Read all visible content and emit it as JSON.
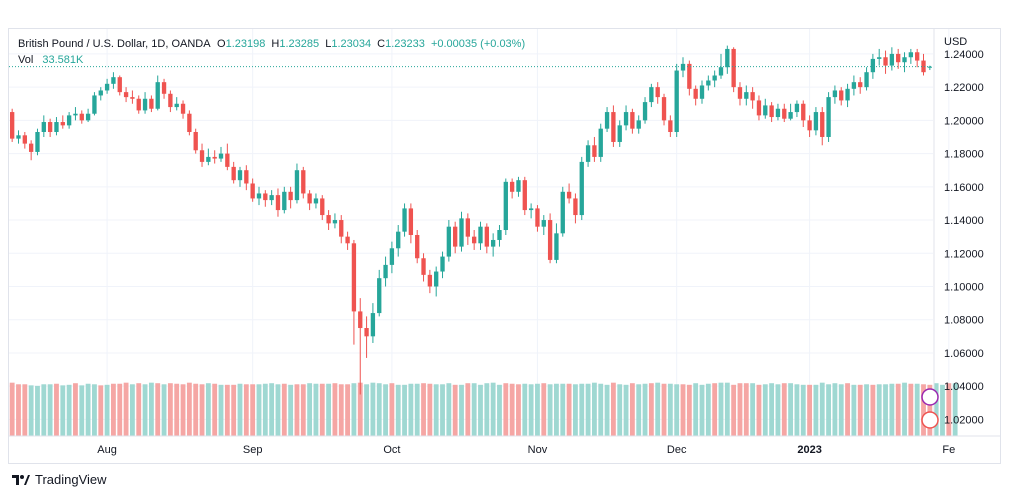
{
  "legend": {
    "symbol": "British Pound / U.S. Dollar, 1D, OANDA",
    "o_label": "O",
    "o_value": "1.23198",
    "h_label": "H",
    "h_value": "1.23285",
    "l_label": "L",
    "l_value": "1.23034",
    "c_label": "C",
    "c_value": "1.23233",
    "change": "+0.00035 (+0.03%)",
    "vol_label": "Vol",
    "vol_value": "33.581K"
  },
  "footer": {
    "brand": "TradingView"
  },
  "colors": {
    "up": "#26a69a",
    "down": "#ef5350",
    "vol_up": "#9fd8d2",
    "vol_down": "#f5a6a4",
    "grid": "#f0f3fa"
  },
  "chart_data": {
    "type": "candlestick",
    "ylabel": "USD",
    "ylim": [
      1.01,
      1.255
    ],
    "yticks": [
      "1.24000",
      "1.22000",
      "1.20000",
      "1.18000",
      "1.16000",
      "1.14000",
      "1.12000",
      "1.10000",
      "1.08000",
      "1.06000",
      "1.04000",
      "1.02000"
    ],
    "xticks": [
      {
        "label": "Aug",
        "index": 15
      },
      {
        "label": "Sep",
        "index": 38
      },
      {
        "label": "Oct",
        "index": 60
      },
      {
        "label": "Nov",
        "index": 83
      },
      {
        "label": "Dec",
        "index": 105
      },
      {
        "label": "2023",
        "index": 126
      },
      {
        "label": "Fe",
        "index": 148
      }
    ],
    "last_close": 1.23233,
    "candles": [
      [
        1.205,
        1.189,
        1.207,
        1.187
      ],
      [
        1.189,
        1.191,
        1.194,
        1.186
      ],
      [
        1.191,
        1.186,
        1.193,
        1.183
      ],
      [
        1.186,
        1.181,
        1.188,
        1.176
      ],
      [
        1.181,
        1.193,
        1.195,
        1.179
      ],
      [
        1.193,
        1.199,
        1.203,
        1.19
      ],
      [
        1.199,
        1.193,
        1.201,
        1.19
      ],
      [
        1.193,
        1.199,
        1.202,
        1.191
      ],
      [
        1.199,
        1.197,
        1.203,
        1.195
      ],
      [
        1.197,
        1.203,
        1.205,
        1.195
      ],
      [
        1.203,
        1.204,
        1.208,
        1.2
      ],
      [
        1.204,
        1.2,
        1.206,
        1.198
      ],
      [
        1.2,
        1.204,
        1.207,
        1.199
      ],
      [
        1.204,
        1.215,
        1.217,
        1.203
      ],
      [
        1.215,
        1.218,
        1.22,
        1.212
      ],
      [
        1.218,
        1.222,
        1.225,
        1.216
      ],
      [
        1.222,
        1.226,
        1.229,
        1.219
      ],
      [
        1.226,
        1.217,
        1.227,
        1.215
      ],
      [
        1.217,
        1.214,
        1.22,
        1.211
      ],
      [
        1.214,
        1.213,
        1.218,
        1.21
      ],
      [
        1.213,
        1.206,
        1.215,
        1.204
      ],
      [
        1.206,
        1.213,
        1.217,
        1.204
      ],
      [
        1.213,
        1.207,
        1.215,
        1.205
      ],
      [
        1.207,
        1.223,
        1.227,
        1.206
      ],
      [
        1.223,
        1.216,
        1.225,
        1.213
      ],
      [
        1.216,
        1.208,
        1.218,
        1.205
      ],
      [
        1.208,
        1.21,
        1.214,
        1.206
      ],
      [
        1.21,
        1.204,
        1.212,
        1.201
      ],
      [
        1.204,
        1.193,
        1.206,
        1.191
      ],
      [
        1.193,
        1.182,
        1.195,
        1.18
      ],
      [
        1.182,
        1.175,
        1.186,
        1.172
      ],
      [
        1.175,
        1.178,
        1.183,
        1.173
      ],
      [
        1.178,
        1.177,
        1.182,
        1.174
      ],
      [
        1.177,
        1.18,
        1.184,
        1.175
      ],
      [
        1.18,
        1.172,
        1.186,
        1.17
      ],
      [
        1.172,
        1.164,
        1.175,
        1.162
      ],
      [
        1.164,
        1.17,
        1.172,
        1.16
      ],
      [
        1.17,
        1.162,
        1.173,
        1.158
      ],
      [
        1.162,
        1.153,
        1.165,
        1.151
      ],
      [
        1.153,
        1.156,
        1.16,
        1.149
      ],
      [
        1.156,
        1.152,
        1.158,
        1.148
      ],
      [
        1.152,
        1.155,
        1.158,
        1.149
      ],
      [
        1.155,
        1.146,
        1.159,
        1.142
      ],
      [
        1.146,
        1.157,
        1.16,
        1.144
      ],
      [
        1.157,
        1.152,
        1.16,
        1.147
      ],
      [
        1.152,
        1.17,
        1.174,
        1.15
      ],
      [
        1.17,
        1.156,
        1.172,
        1.153
      ],
      [
        1.156,
        1.15,
        1.158,
        1.146
      ],
      [
        1.15,
        1.153,
        1.156,
        1.147
      ],
      [
        1.153,
        1.143,
        1.155,
        1.14
      ],
      [
        1.143,
        1.138,
        1.146,
        1.134
      ],
      [
        1.138,
        1.14,
        1.144,
        1.135
      ],
      [
        1.14,
        1.13,
        1.143,
        1.126
      ],
      [
        1.13,
        1.126,
        1.133,
        1.122
      ],
      [
        1.126,
        1.085,
        1.128,
        1.065
      ],
      [
        1.085,
        1.075,
        1.093,
        1.035
      ],
      [
        1.075,
        1.07,
        1.082,
        1.057
      ],
      [
        1.07,
        1.084,
        1.09,
        1.066
      ],
      [
        1.084,
        1.105,
        1.11,
        1.082
      ],
      [
        1.105,
        1.113,
        1.118,
        1.1
      ],
      [
        1.113,
        1.123,
        1.127,
        1.108
      ],
      [
        1.123,
        1.133,
        1.137,
        1.118
      ],
      [
        1.133,
        1.147,
        1.15,
        1.13
      ],
      [
        1.147,
        1.131,
        1.15,
        1.126
      ],
      [
        1.131,
        1.117,
        1.134,
        1.114
      ],
      [
        1.117,
        1.107,
        1.12,
        1.103
      ],
      [
        1.107,
        1.1,
        1.11,
        1.096
      ],
      [
        1.1,
        1.109,
        1.112,
        1.094
      ],
      [
        1.109,
        1.118,
        1.121,
        1.105
      ],
      [
        1.118,
        1.136,
        1.14,
        1.115
      ],
      [
        1.136,
        1.124,
        1.139,
        1.12
      ],
      [
        1.124,
        1.141,
        1.145,
        1.121
      ],
      [
        1.141,
        1.13,
        1.144,
        1.125
      ],
      [
        1.13,
        1.126,
        1.134,
        1.122
      ],
      [
        1.126,
        1.136,
        1.139,
        1.122
      ],
      [
        1.136,
        1.124,
        1.138,
        1.12
      ],
      [
        1.124,
        1.128,
        1.132,
        1.118
      ],
      [
        1.128,
        1.134,
        1.137,
        1.124
      ],
      [
        1.134,
        1.163,
        1.165,
        1.131
      ],
      [
        1.163,
        1.157,
        1.165,
        1.153
      ],
      [
        1.157,
        1.164,
        1.166,
        1.154
      ],
      [
        1.164,
        1.146,
        1.166,
        1.143
      ],
      [
        1.146,
        1.147,
        1.15,
        1.141
      ],
      [
        1.147,
        1.136,
        1.149,
        1.133
      ],
      [
        1.136,
        1.14,
        1.143,
        1.131
      ],
      [
        1.14,
        1.116,
        1.144,
        1.114
      ],
      [
        1.116,
        1.132,
        1.138,
        1.114
      ],
      [
        1.132,
        1.157,
        1.16,
        1.13
      ],
      [
        1.157,
        1.153,
        1.162,
        1.15
      ],
      [
        1.153,
        1.143,
        1.156,
        1.138
      ],
      [
        1.143,
        1.175,
        1.178,
        1.14
      ],
      [
        1.175,
        1.185,
        1.188,
        1.172
      ],
      [
        1.185,
        1.178,
        1.19,
        1.175
      ],
      [
        1.178,
        1.195,
        1.198,
        1.175
      ],
      [
        1.195,
        1.205,
        1.208,
        1.193
      ],
      [
        1.205,
        1.187,
        1.209,
        1.184
      ],
      [
        1.187,
        1.197,
        1.2,
        1.184
      ],
      [
        1.197,
        1.205,
        1.209,
        1.194
      ],
      [
        1.205,
        1.195,
        1.207,
        1.192
      ],
      [
        1.195,
        1.2,
        1.203,
        1.192
      ],
      [
        1.2,
        1.211,
        1.214,
        1.198
      ],
      [
        1.211,
        1.22,
        1.222,
        1.208
      ],
      [
        1.22,
        1.214,
        1.223,
        1.21
      ],
      [
        1.214,
        1.2,
        1.216,
        1.197
      ],
      [
        1.2,
        1.193,
        1.203,
        1.19
      ],
      [
        1.193,
        1.23,
        1.234,
        1.19
      ],
      [
        1.23,
        1.234,
        1.238,
        1.226
      ],
      [
        1.234,
        1.219,
        1.236,
        1.215
      ],
      [
        1.219,
        1.213,
        1.221,
        1.209
      ],
      [
        1.213,
        1.221,
        1.224,
        1.21
      ],
      [
        1.221,
        1.224,
        1.227,
        1.218
      ],
      [
        1.224,
        1.227,
        1.23,
        1.22
      ],
      [
        1.227,
        1.232,
        1.24,
        1.225
      ],
      [
        1.232,
        1.243,
        1.245,
        1.228
      ],
      [
        1.243,
        1.22,
        1.244,
        1.217
      ],
      [
        1.22,
        1.213,
        1.223,
        1.209
      ],
      [
        1.213,
        1.217,
        1.221,
        1.209
      ],
      [
        1.217,
        1.212,
        1.22,
        1.207
      ],
      [
        1.212,
        1.203,
        1.215,
        1.2
      ],
      [
        1.203,
        1.209,
        1.213,
        1.201
      ],
      [
        1.209,
        1.202,
        1.211,
        1.199
      ],
      [
        1.202,
        1.207,
        1.21,
        1.2
      ],
      [
        1.207,
        1.201,
        1.21,
        1.199
      ],
      [
        1.201,
        1.205,
        1.21,
        1.2
      ],
      [
        1.205,
        1.21,
        1.212,
        1.202
      ],
      [
        1.21,
        1.2,
        1.212,
        1.196
      ],
      [
        1.2,
        1.194,
        1.203,
        1.19
      ],
      [
        1.194,
        1.205,
        1.208,
        1.191
      ],
      [
        1.205,
        1.19,
        1.208,
        1.185
      ],
      [
        1.19,
        1.214,
        1.217,
        1.187
      ],
      [
        1.214,
        1.218,
        1.221,
        1.21
      ],
      [
        1.218,
        1.212,
        1.22,
        1.209
      ],
      [
        1.212,
        1.219,
        1.222,
        1.208
      ],
      [
        1.219,
        1.223,
        1.227,
        1.215
      ],
      [
        1.223,
        1.22,
        1.226,
        1.216
      ],
      [
        1.22,
        1.229,
        1.232,
        1.218
      ],
      [
        1.229,
        1.237,
        1.24,
        1.225
      ],
      [
        1.237,
        1.238,
        1.243,
        1.233
      ],
      [
        1.238,
        1.233,
        1.242,
        1.228
      ],
      [
        1.233,
        1.24,
        1.244,
        1.23
      ],
      [
        1.24,
        1.235,
        1.243,
        1.231
      ],
      [
        1.235,
        1.238,
        1.241,
        1.229
      ],
      [
        1.238,
        1.241,
        1.243,
        1.234
      ],
      [
        1.241,
        1.236,
        1.243,
        1.232
      ],
      [
        1.236,
        1.229,
        1.24,
        1.227
      ],
      [
        1.232,
        1.2323,
        1.2329,
        1.2303
      ]
    ],
    "volumes": [
      [
        1.0,
        0
      ],
      [
        0.97,
        0
      ],
      [
        0.97,
        0
      ],
      [
        0.95,
        1
      ],
      [
        0.94,
        1
      ],
      [
        0.97,
        1
      ],
      [
        0.97,
        1
      ],
      [
        0.98,
        0
      ],
      [
        0.95,
        1
      ],
      [
        0.96,
        1
      ],
      [
        0.99,
        0
      ],
      [
        0.95,
        1
      ],
      [
        0.98,
        1
      ],
      [
        0.97,
        1
      ],
      [
        0.95,
        0
      ],
      [
        0.96,
        1
      ],
      [
        0.98,
        0
      ],
      [
        0.98,
        0
      ],
      [
        1.0,
        0
      ],
      [
        0.97,
        1
      ],
      [
        0.99,
        0
      ],
      [
        0.97,
        1
      ],
      [
        1.0,
        1
      ],
      [
        0.99,
        0
      ],
      [
        0.97,
        1
      ],
      [
        0.99,
        0
      ],
      [
        0.98,
        0
      ],
      [
        0.97,
        0
      ],
      [
        1.0,
        0
      ],
      [
        0.98,
        0
      ],
      [
        0.97,
        0
      ],
      [
        0.99,
        1
      ],
      [
        0.98,
        0
      ],
      [
        0.96,
        1
      ],
      [
        0.96,
        0
      ],
      [
        0.96,
        0
      ],
      [
        0.98,
        1
      ],
      [
        0.97,
        0
      ],
      [
        0.97,
        0
      ],
      [
        0.97,
        1
      ],
      [
        0.98,
        1
      ],
      [
        0.99,
        1
      ],
      [
        0.97,
        1
      ],
      [
        0.98,
        0
      ],
      [
        0.96,
        1
      ],
      [
        0.97,
        0
      ],
      [
        0.97,
        0
      ],
      [
        0.99,
        1
      ],
      [
        0.98,
        1
      ],
      [
        0.98,
        0
      ],
      [
        0.98,
        1
      ],
      [
        0.99,
        0
      ],
      [
        0.97,
        0
      ],
      [
        0.97,
        0
      ],
      [
        0.99,
        1
      ],
      [
        1.0,
        0
      ],
      [
        0.97,
        1
      ],
      [
        1.0,
        1
      ],
      [
        0.99,
        1
      ],
      [
        0.97,
        1
      ],
      [
        0.99,
        0
      ],
      [
        0.96,
        1
      ],
      [
        0.96,
        1
      ],
      [
        0.98,
        1
      ],
      [
        0.98,
        1
      ],
      [
        0.99,
        0
      ],
      [
        0.98,
        0
      ],
      [
        0.97,
        1
      ],
      [
        0.97,
        1
      ],
      [
        0.99,
        1
      ],
      [
        0.96,
        0
      ],
      [
        0.96,
        1
      ],
      [
        0.99,
        0
      ],
      [
        0.99,
        1
      ],
      [
        0.96,
        1
      ],
      [
        0.99,
        1
      ],
      [
        1.0,
        1
      ],
      [
        0.96,
        1
      ],
      [
        0.99,
        0
      ],
      [
        0.98,
        0
      ],
      [
        0.97,
        0
      ],
      [
        0.98,
        1
      ],
      [
        0.97,
        1
      ],
      [
        0.98,
        1
      ],
      [
        0.99,
        0
      ],
      [
        0.97,
        1
      ],
      [
        0.98,
        1
      ],
      [
        0.98,
        1
      ],
      [
        0.98,
        0
      ],
      [
        0.97,
        1
      ],
      [
        0.98,
        1
      ],
      [
        0.98,
        1
      ],
      [
        1.0,
        1
      ],
      [
        0.98,
        1
      ],
      [
        0.96,
        1
      ],
      [
        1.0,
        0
      ],
      [
        0.97,
        1
      ],
      [
        0.96,
        1
      ],
      [
        0.99,
        0
      ],
      [
        0.97,
        1
      ],
      [
        0.98,
        1
      ],
      [
        0.99,
        0
      ],
      [
        1.0,
        1
      ],
      [
        0.98,
        0
      ],
      [
        0.98,
        1
      ],
      [
        0.97,
        1
      ],
      [
        0.97,
        0
      ],
      [
        0.96,
        0
      ],
      [
        0.99,
        1
      ],
      [
        0.96,
        1
      ],
      [
        0.98,
        1
      ],
      [
        0.99,
        0
      ],
      [
        1.0,
        1
      ],
      [
        1.0,
        1
      ],
      [
        0.96,
        0
      ],
      [
        0.99,
        0
      ],
      [
        0.99,
        0
      ],
      [
        0.99,
        1
      ],
      [
        0.96,
        0
      ],
      [
        0.97,
        1
      ],
      [
        0.99,
        1
      ],
      [
        0.97,
        1
      ],
      [
        0.99,
        0
      ],
      [
        0.99,
        1
      ],
      [
        0.97,
        1
      ],
      [
        0.96,
        1
      ],
      [
        0.96,
        0
      ],
      [
        0.96,
        1
      ],
      [
        1.0,
        1
      ],
      [
        0.97,
        1
      ],
      [
        0.99,
        1
      ],
      [
        0.97,
        1
      ],
      [
        0.99,
        0
      ],
      [
        0.96,
        1
      ],
      [
        0.96,
        0
      ],
      [
        0.97,
        1
      ],
      [
        0.96,
        0
      ],
      [
        0.97,
        1
      ],
      [
        0.97,
        1
      ],
      [
        0.98,
        1
      ],
      [
        0.98,
        0
      ],
      [
        1.0,
        1
      ],
      [
        0.98,
        0
      ],
      [
        0.98,
        1
      ],
      [
        0.97,
        0
      ],
      [
        0.96,
        0
      ],
      [
        0.99,
        1
      ],
      [
        0.96,
        1
      ],
      [
        0.99,
        0
      ],
      [
        0.99,
        1
      ]
    ]
  }
}
